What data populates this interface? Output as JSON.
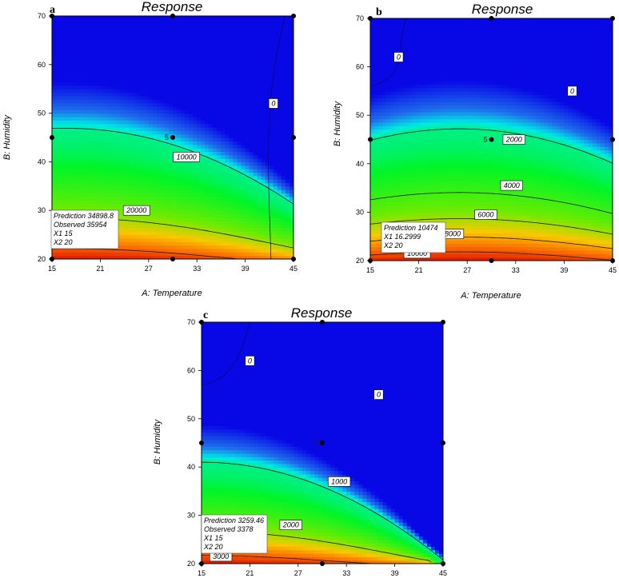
{
  "chart_data": [
    {
      "panel": "a",
      "type": "contour",
      "title": "Response",
      "xlabel": "A: Temperature",
      "ylabel": "B: Humidity",
      "xlim": [
        15,
        45
      ],
      "ylim": [
        20,
        70
      ],
      "xticks": [
        "15",
        "21",
        "27",
        "33",
        "39",
        "45"
      ],
      "yticks": [
        "20",
        "30",
        "40",
        "50",
        "60",
        "70"
      ],
      "design_points": [
        [
          15,
          20
        ],
        [
          30,
          20
        ],
        [
          45,
          20
        ],
        [
          15,
          45
        ],
        [
          45,
          45
        ],
        [
          15,
          70
        ],
        [
          30,
          70
        ],
        [
          45,
          70
        ],
        [
          30,
          45
        ]
      ],
      "center_point_label": "5",
      "contour_labels": [
        {
          "text": "0",
          "x": 42.5,
          "y": 52
        },
        {
          "text": "10000",
          "x": 31.7,
          "y": 41
        },
        {
          "text": "20000",
          "x": 25.5,
          "y": 30
        }
      ],
      "info_box": [
        "Prediction  34898.8",
        "Observed  35954",
        "X1  15",
        "X2  20"
      ]
    },
    {
      "panel": "b",
      "type": "contour",
      "title": "Response",
      "xlabel": "A: Temperature",
      "ylabel": "B: Humidity",
      "xlim": [
        15,
        45
      ],
      "ylim": [
        20,
        70
      ],
      "xticks": [
        "15",
        "21",
        "27",
        "33",
        "39",
        "45"
      ],
      "yticks": [
        "20",
        "30",
        "40",
        "50",
        "60",
        "70"
      ],
      "design_points": [
        [
          15,
          20
        ],
        [
          30,
          20
        ],
        [
          45,
          20
        ],
        [
          15,
          45
        ],
        [
          45,
          45
        ],
        [
          15,
          70
        ],
        [
          30,
          70
        ],
        [
          45,
          70
        ],
        [
          30,
          45
        ]
      ],
      "center_point_label": "5",
      "contour_labels": [
        {
          "text": "0",
          "x": 18.5,
          "y": 62
        },
        {
          "text": "0",
          "x": 40,
          "y": 55
        },
        {
          "text": "2000",
          "x": 32.8,
          "y": 45
        },
        {
          "text": "4000",
          "x": 32.5,
          "y": 35.5
        },
        {
          "text": "6000",
          "x": 29.3,
          "y": 29.5
        },
        {
          "text": "8000",
          "x": 25.2,
          "y": 25.5
        },
        {
          "text": "10000",
          "x": 20.8,
          "y": 21.5
        }
      ],
      "info_box": [
        "Prediction  10474",
        "X1  16.2999",
        "X2  20"
      ]
    },
    {
      "panel": "c",
      "type": "contour",
      "title": "Response",
      "xlabel": "",
      "ylabel": "B: Humidity",
      "xlim": [
        15,
        45
      ],
      "ylim": [
        20,
        70
      ],
      "xticks": [
        "15",
        "21",
        "27",
        "33",
        "39",
        "45"
      ],
      "yticks": [
        "20",
        "30",
        "40",
        "50",
        "60",
        "70"
      ],
      "design_points": [
        [
          15,
          20
        ],
        [
          30,
          20
        ],
        [
          45,
          20
        ],
        [
          15,
          45
        ],
        [
          45,
          45
        ],
        [
          15,
          70
        ],
        [
          30,
          70
        ],
        [
          45,
          70
        ],
        [
          30,
          45
        ]
      ],
      "center_point_label": "5",
      "contour_labels": [
        {
          "text": "0",
          "x": 21,
          "y": 62
        },
        {
          "text": "0",
          "x": 37,
          "y": 55
        },
        {
          "text": "1000",
          "x": 32.1,
          "y": 37
        },
        {
          "text": "2000",
          "x": 26.1,
          "y": 28
        },
        {
          "text": "3000",
          "x": 17.4,
          "y": 21.5
        }
      ],
      "info_box": [
        "Prediction  3259.46",
        "Observed  3378",
        "X1  15",
        "X2  20"
      ]
    }
  ]
}
